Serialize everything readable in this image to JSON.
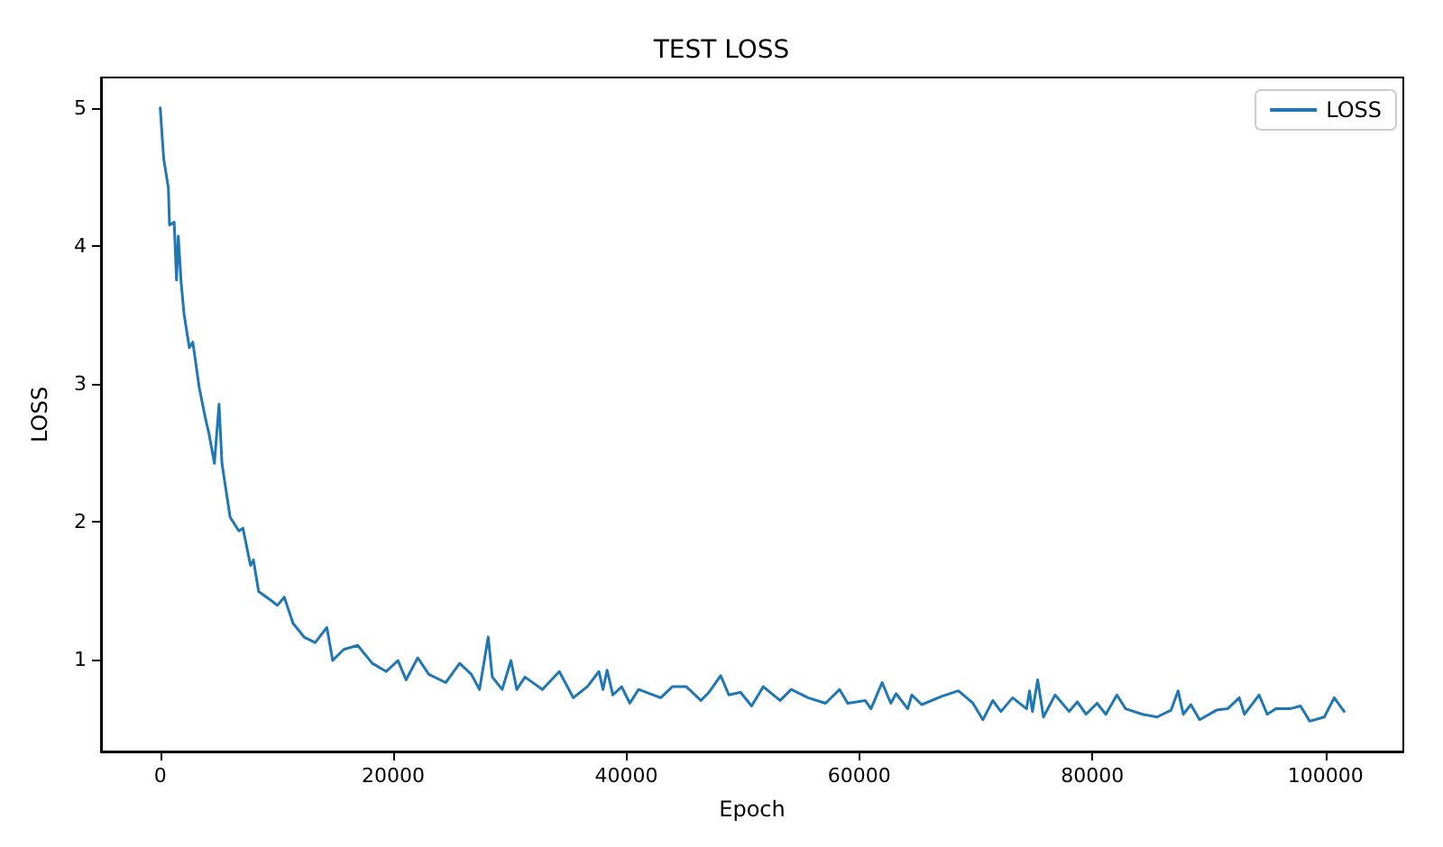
{
  "chart_data": {
    "type": "line",
    "title": "TEST LOSS",
    "xlabel": "Epoch",
    "ylabel": "LOSS",
    "xlim": [
      -5080,
      106680
    ],
    "ylim": [
      0.33,
      5.22
    ],
    "xticks": [
      0,
      20000,
      40000,
      60000,
      80000,
      100000
    ],
    "yticks": [
      1,
      2,
      3,
      4,
      5
    ],
    "grid": false,
    "legend": "top right",
    "marker": "none",
    "line_style": "solid",
    "series": [
      {
        "name": "LOSS",
        "color": "#1f77b4",
        "x": [
          0,
          300,
          700,
          800,
          1200,
          1400,
          1550,
          1800,
          2050,
          2500,
          2800,
          3350,
          3850,
          4200,
          4650,
          5050,
          5300,
          5550,
          6000,
          6750,
          7100,
          7750,
          8000,
          8450,
          9450,
          10050,
          10650,
          11400,
          12350,
          13300,
          14300,
          14800,
          15750,
          16950,
          18200,
          19400,
          20400,
          21100,
          22100,
          23050,
          24500,
          25700,
          26700,
          27400,
          28150,
          28500,
          29350,
          30100,
          30600,
          31300,
          32800,
          34250,
          35450,
          36650,
          37650,
          38000,
          38350,
          38850,
          39600,
          40300,
          41050,
          42950,
          43950,
          45150,
          46400,
          47100,
          48100,
          48800,
          49800,
          50750,
          51750,
          53200,
          54150,
          55600,
          57100,
          58300,
          59000,
          60500,
          61000,
          61950,
          62700,
          63150,
          64150,
          64500,
          65350,
          67050,
          68500,
          69750,
          70600,
          71450,
          72150,
          73150,
          74350,
          74600,
          74850,
          75300,
          75800,
          76800,
          78000,
          78700,
          79450,
          80400,
          81150,
          82100,
          82850,
          84300,
          85550,
          86750,
          87350,
          87800,
          88450,
          89200,
          90650,
          91600,
          92600,
          93050,
          94300,
          95000,
          95750,
          96950,
          97850,
          98650,
          99900,
          100750,
          101600
        ],
        "values": [
          5.0,
          4.63,
          4.42,
          4.15,
          4.17,
          3.75,
          4.07,
          3.73,
          3.5,
          3.26,
          3.3,
          2.97,
          2.76,
          2.63,
          2.42,
          2.85,
          2.42,
          2.28,
          2.03,
          1.93,
          1.95,
          1.68,
          1.72,
          1.49,
          1.43,
          1.39,
          1.45,
          1.26,
          1.16,
          1.12,
          1.23,
          0.99,
          1.07,
          1.1,
          0.97,
          0.91,
          0.99,
          0.85,
          1.01,
          0.89,
          0.83,
          0.97,
          0.89,
          0.78,
          1.16,
          0.87,
          0.78,
          0.99,
          0.78,
          0.87,
          0.78,
          0.91,
          0.72,
          0.8,
          0.91,
          0.78,
          0.92,
          0.74,
          0.8,
          0.68,
          0.78,
          0.72,
          0.8,
          0.8,
          0.7,
          0.76,
          0.88,
          0.74,
          0.76,
          0.66,
          0.8,
          0.7,
          0.78,
          0.72,
          0.68,
          0.78,
          0.68,
          0.7,
          0.64,
          0.83,
          0.68,
          0.75,
          0.64,
          0.74,
          0.67,
          0.73,
          0.77,
          0.68,
          0.56,
          0.7,
          0.62,
          0.72,
          0.64,
          0.77,
          0.62,
          0.85,
          0.58,
          0.74,
          0.62,
          0.69,
          0.6,
          0.68,
          0.6,
          0.74,
          0.64,
          0.6,
          0.58,
          0.63,
          0.77,
          0.6,
          0.67,
          0.56,
          0.63,
          0.64,
          0.72,
          0.6,
          0.74,
          0.6,
          0.64,
          0.64,
          0.66,
          0.55,
          0.58,
          0.72,
          0.62
        ]
      }
    ]
  }
}
